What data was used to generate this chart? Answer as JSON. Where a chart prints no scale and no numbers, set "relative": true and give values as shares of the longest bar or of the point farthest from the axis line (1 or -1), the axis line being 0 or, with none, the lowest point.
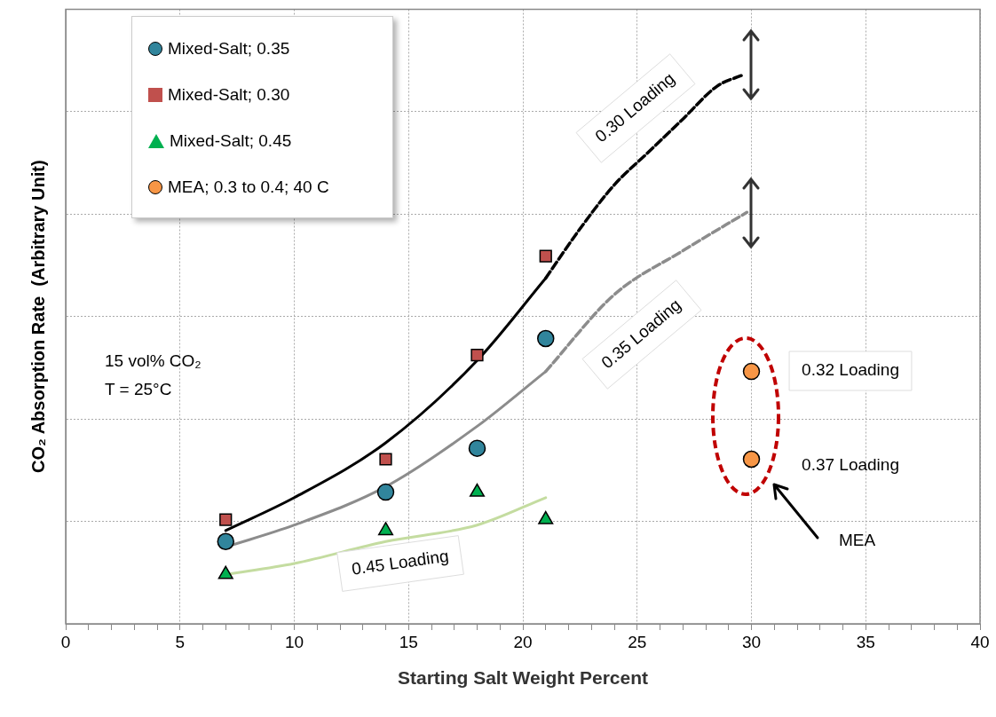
{
  "chart_data": {
    "type": "scatter",
    "xlabel": "Starting Salt Weight Percent",
    "ylabel": "CO₂ Absorption Rate  (Arbitrary Unit)",
    "relative": true,
    "grid": true,
    "legend": "top left",
    "xlim": [
      0,
      40
    ],
    "xticks": [
      0,
      {
        "value": 1,
        "label": null
      },
      {
        "value": 2,
        "label": null
      },
      {
        "value": 3,
        "label": null
      },
      {
        "value": 4,
        "label": null
      },
      5,
      {
        "value": 6,
        "label": null
      },
      {
        "value": 7,
        "label": null
      },
      {
        "value": 8,
        "label": null
      },
      {
        "value": 9,
        "label": null
      },
      10,
      {
        "value": 11,
        "label": null
      },
      {
        "value": 12,
        "label": null
      },
      {
        "value": 13,
        "label": null
      },
      {
        "value": 14,
        "label": null
      },
      15,
      {
        "value": 16,
        "label": null
      },
      {
        "value": 17,
        "label": null
      },
      {
        "value": 18,
        "label": null
      },
      {
        "value": 19,
        "label": null
      },
      20,
      {
        "value": 21,
        "label": null
      },
      {
        "value": 22,
        "label": null
      },
      {
        "value": 23,
        "label": null
      },
      {
        "value": 24,
        "label": null
      },
      25,
      {
        "value": 26,
        "label": null
      },
      {
        "value": 27,
        "label": null
      },
      {
        "value": 28,
        "label": null
      },
      {
        "value": 29,
        "label": null
      },
      30,
      {
        "value": 31,
        "label": null
      },
      {
        "value": 32,
        "label": null
      },
      {
        "value": 33,
        "label": null
      },
      {
        "value": 34,
        "label": null
      },
      35,
      {
        "value": 36,
        "label": null
      },
      {
        "value": 37,
        "label": null
      },
      {
        "value": 38,
        "label": null
      },
      {
        "value": 39,
        "label": null
      },
      40
    ],
    "series": [
      {
        "type": "line",
        "marker": "none",
        "line_style": "solid",
        "color": "#000000",
        "x": [
          7,
          10,
          14,
          18,
          21
        ],
        "values": [
          0.17,
          0.23,
          0.33,
          0.48,
          0.63
        ]
      },
      {
        "type": "line",
        "marker": "none",
        "line_style": "dashed",
        "color": "#000000",
        "x": [
          21,
          22.5,
          24,
          25.5,
          27,
          28.5,
          29.6
        ],
        "values": [
          0.63,
          0.72,
          0.8,
          0.86,
          0.92,
          0.98,
          1.0
        ]
      },
      {
        "type": "line",
        "marker": "none",
        "line_style": "solid",
        "color": "#8c8c8c",
        "x": [
          7,
          10,
          14,
          18,
          21
        ],
        "values": [
          0.14,
          0.18,
          0.25,
          0.36,
          0.46
        ]
      },
      {
        "type": "line",
        "marker": "none",
        "line_style": "dashed",
        "color": "#8c8c8c",
        "x": [
          21,
          24,
          27,
          29.8
        ],
        "values": [
          0.46,
          0.6,
          0.68,
          0.75
        ]
      },
      {
        "type": "line",
        "marker": "none",
        "line_style": "solid",
        "color": "#c4dca0",
        "x": [
          7,
          10,
          14,
          18,
          21
        ],
        "values": [
          0.09,
          0.11,
          0.15,
          0.18,
          0.23
        ]
      },
      {
        "name": "Mixed-Salt; 0.35",
        "type": "scatter",
        "marker": "circle",
        "color": "#31859c",
        "x": [
          7,
          14,
          18,
          21
        ],
        "values": [
          0.15,
          0.24,
          0.32,
          0.52
        ]
      },
      {
        "name": "Mixed-Salt; 0.30",
        "type": "scatter",
        "marker": "square",
        "color": "#c0504d",
        "x": [
          7,
          14,
          18,
          21
        ],
        "values": [
          0.19,
          0.3,
          0.49,
          0.67
        ]
      },
      {
        "name": "Mixed-Salt; 0.45",
        "type": "scatter",
        "marker": "triangle",
        "color": "#00b050",
        "x": [
          7,
          14,
          18,
          21
        ],
        "values": [
          0.09,
          0.17,
          0.24,
          0.19
        ]
      },
      {
        "name": "MEA; 0.3 to 0.4; 40 C",
        "type": "scatter",
        "marker": "circle",
        "color": "#f79646",
        "x": [
          30,
          30
        ],
        "values": [
          0.46,
          0.3
        ]
      }
    ],
    "annotations": [
      "0.30 Loading",
      "0.35 Loading",
      "0.45 Loading",
      "0.32 Loading",
      "0.37 Loading",
      "15 vol% CO₂",
      "T = 25°C",
      "MEA"
    ]
  }
}
